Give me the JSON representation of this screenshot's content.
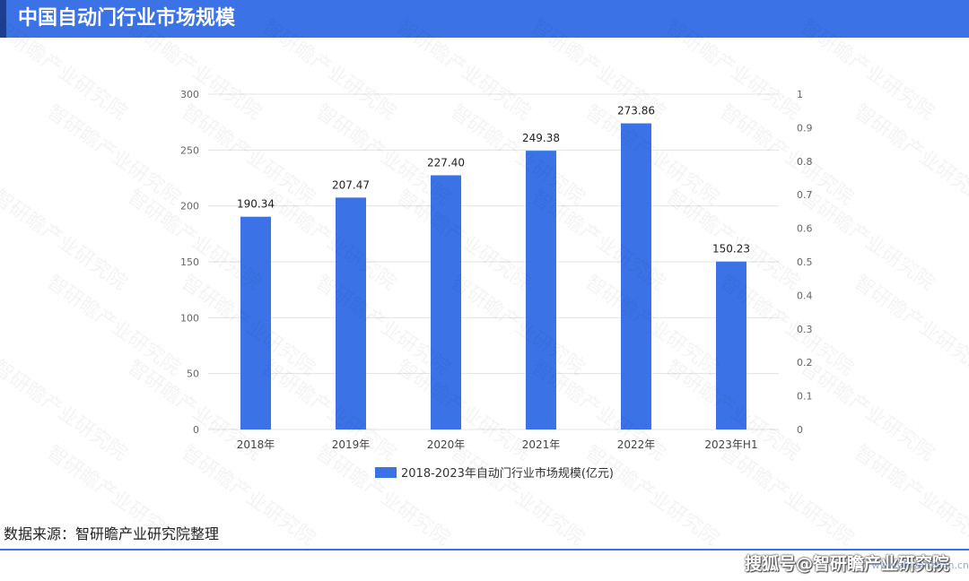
{
  "header": {
    "title": "中国自动门行业市场规模"
  },
  "source": "数据来源：智研瞻产业研究院整理",
  "watermark": {
    "sohu": "搜狐号@智研瞻产业研究院",
    "site": "www.zhiyanzhan.cn",
    "tile_text": "智研瞻产业研究院"
  },
  "colors": {
    "bar": "#3b73e6",
    "header": "#3b73e6",
    "grid": "#e3e3e3"
  },
  "chart_data": {
    "type": "bar",
    "categories": [
      "2018年",
      "2019年",
      "2020年",
      "2021年",
      "2022年",
      "2023年H1"
    ],
    "series": [
      {
        "name": "2018-2023年自动门行业市场规模(亿元)",
        "values": [
          190.34,
          207.47,
          227.4,
          249.38,
          273.86,
          150.23
        ],
        "labels": [
          "190.34",
          "207.47",
          "227.40",
          "249.38",
          "273.86",
          "150.23"
        ]
      }
    ],
    "ylim": [
      0,
      300
    ],
    "yticks": [
      "0",
      "50",
      "100",
      "150",
      "200",
      "250",
      "300"
    ],
    "y2lim": [
      0,
      1
    ],
    "y2ticks": [
      "0",
      "0.1",
      "0.2",
      "0.3",
      "0.4",
      "0.5",
      "0.6",
      "0.7",
      "0.8",
      "0.9",
      "1"
    ],
    "grid": true,
    "legend": "bottom"
  }
}
